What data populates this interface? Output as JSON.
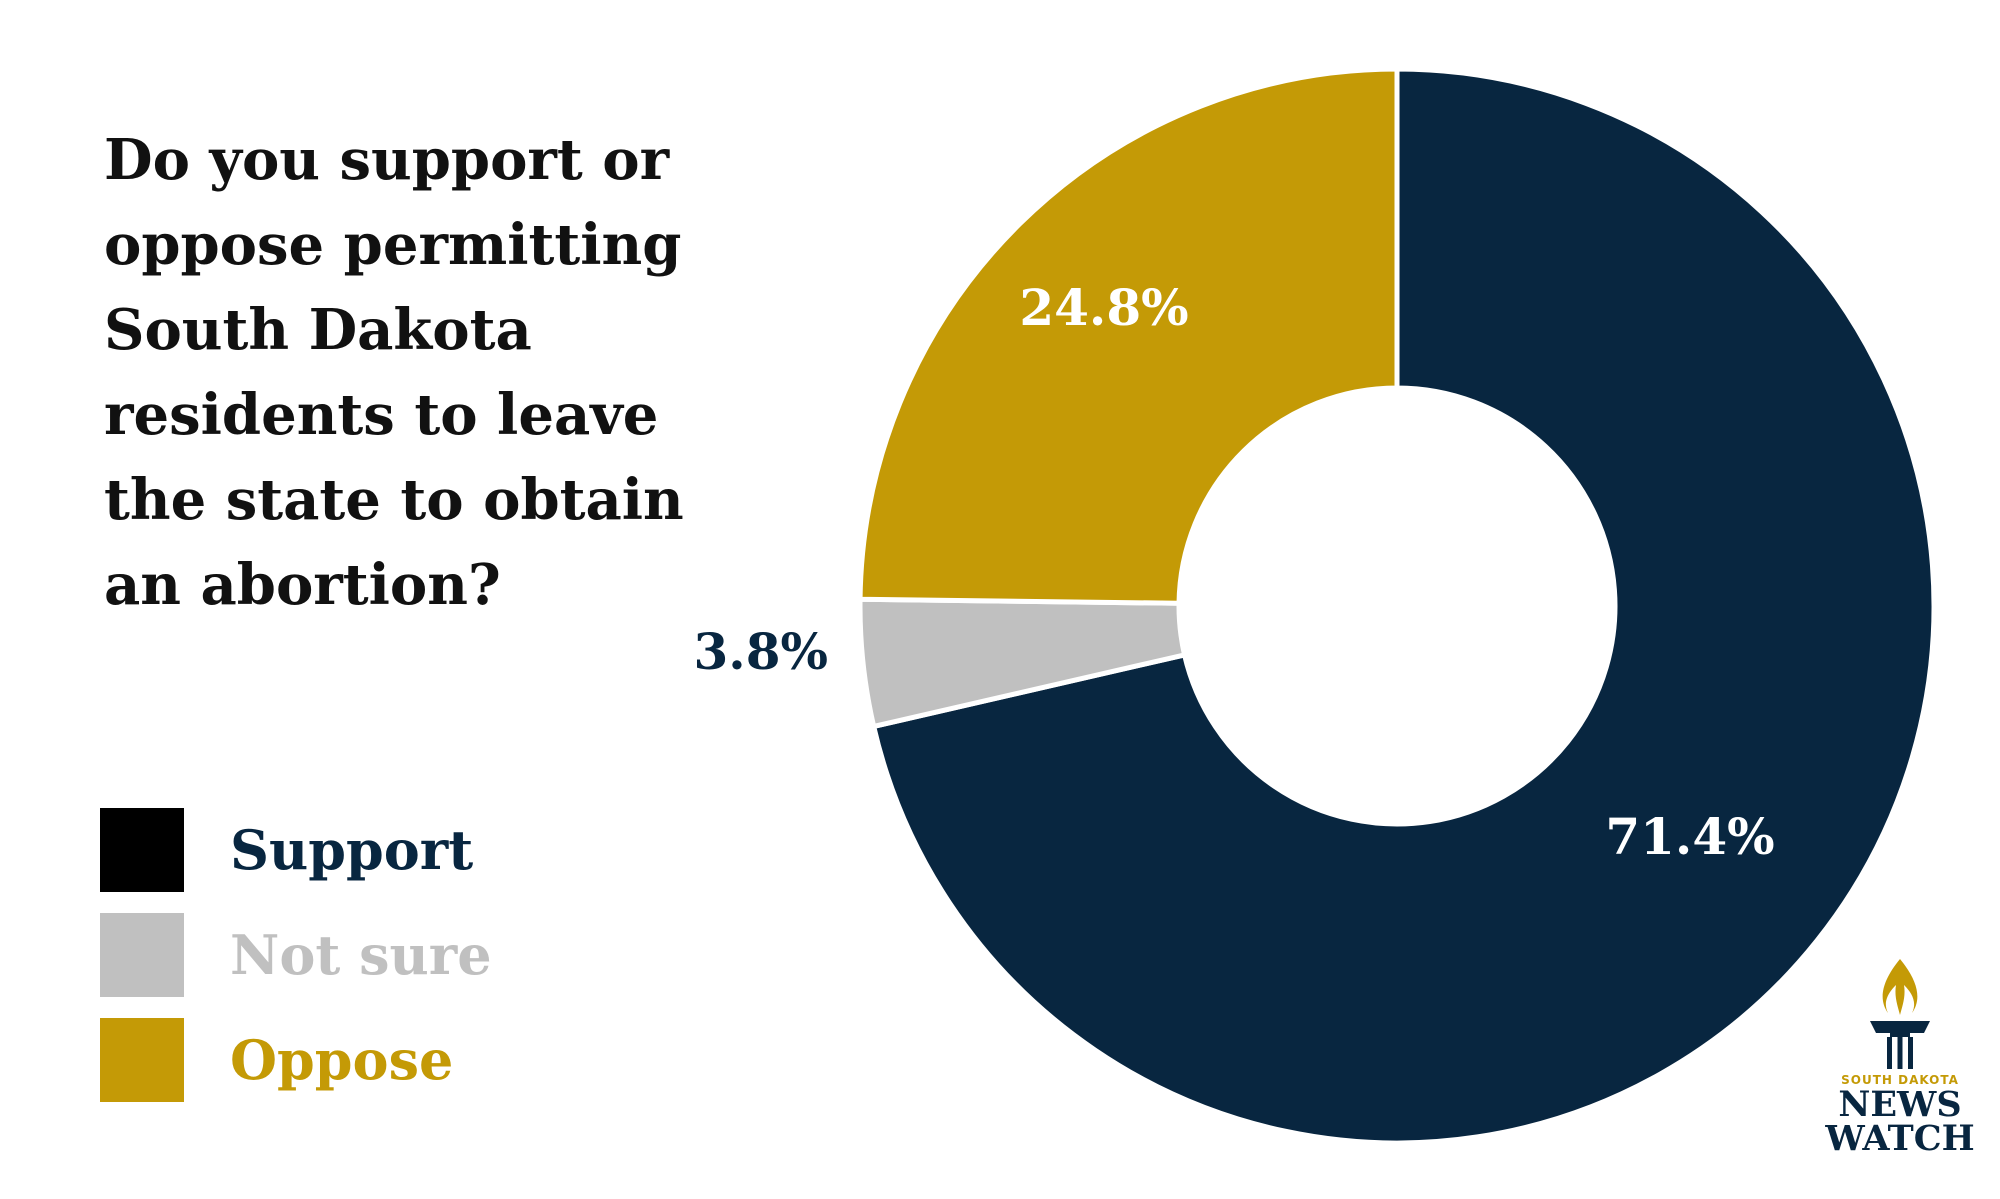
{
  "question": "Do you support or\noppose permitting\nSouth Dakota\nresidents to leave\nthe state to obtain\nan abortion?",
  "legend": [
    {
      "label": "Support",
      "swatch_color": "#000000",
      "text_color": "#082640"
    },
    {
      "label": "Not sure",
      "swatch_color": "#c0c0c0",
      "text_color": "#c0c0c0"
    },
    {
      "label": "Oppose",
      "swatch_color": "#c49a06",
      "text_color": "#c49a06"
    }
  ],
  "chart_data": {
    "type": "pie",
    "style": "donut",
    "categories": [
      "Support",
      "Not sure",
      "Oppose"
    ],
    "values": [
      71.4,
      3.8,
      24.8
    ],
    "data_labels": [
      "71.4%",
      "3.8%",
      "24.8%"
    ],
    "colors": [
      "#082640",
      "#c0c0c0",
      "#c49a06"
    ],
    "start": "top",
    "direction": "clockwise",
    "legend_position": "left"
  },
  "logo": {
    "line1": "SOUTH DAKOTA",
    "line2": "NEWS",
    "line3": "WATCH",
    "icon": "torch-icon"
  }
}
